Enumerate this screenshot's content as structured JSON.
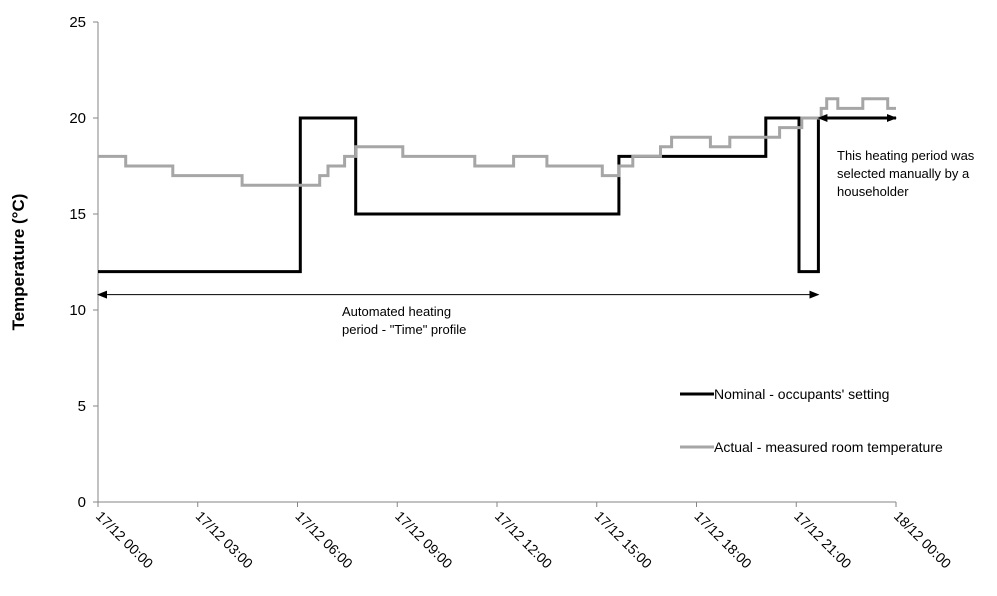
{
  "chart_data": {
    "type": "line",
    "title": "",
    "xlabel": "",
    "ylabel": "Temperature (°C)",
    "ylim": [
      0,
      25
    ],
    "yticks": [
      0,
      5,
      10,
      15,
      20,
      25
    ],
    "xlim": [
      "17/12 00:00",
      "18/12 00:00"
    ],
    "xtick_labels": [
      "17/12  00:00",
      "17/12  03:00",
      "17/12  06:00",
      "17/12  09:00",
      "17/12  12:00",
      "17/12  15:00",
      "17/12  18:00",
      "17/12  21:00",
      "18/12  00:00"
    ],
    "grid": false,
    "legend_position": "right",
    "series": [
      {
        "name": "Nominal - occupants' setting",
        "color": "#000000",
        "step": true,
        "points": [
          [
            "17/12 00:00",
            12
          ],
          [
            "17/12 06:05",
            20
          ],
          [
            "17/12 07:45",
            15
          ],
          [
            "17/12 15:40",
            18
          ],
          [
            "17/12 20:05",
            20
          ],
          [
            "17/12 21:05",
            12
          ],
          [
            "17/12 21:40",
            20
          ],
          [
            "18/12 00:00",
            20
          ]
        ]
      },
      {
        "name": "Actual - measured room temperature",
        "color": "#a6a6a6",
        "step": true,
        "points": [
          [
            "17/12 00:00",
            18
          ],
          [
            "17/12 00:50",
            17.5
          ],
          [
            "17/12 02:15",
            17
          ],
          [
            "17/12 04:20",
            16.5
          ],
          [
            "17/12 06:30",
            16.5
          ],
          [
            "17/12 06:40",
            17
          ],
          [
            "17/12 06:55",
            17.5
          ],
          [
            "17/12 07:25",
            18
          ],
          [
            "17/12 07:45",
            18.5
          ],
          [
            "17/12 09:10",
            18
          ],
          [
            "17/12 11:20",
            17.5
          ],
          [
            "17/12 12:30",
            18
          ],
          [
            "17/12 13:30",
            17.5
          ],
          [
            "17/12 15:10",
            17
          ],
          [
            "17/12 15:40",
            17.5
          ],
          [
            "17/12 16:05",
            18
          ],
          [
            "17/12 16:55",
            18.5
          ],
          [
            "17/12 17:15",
            19
          ],
          [
            "17/12 18:25",
            18.5
          ],
          [
            "17/12 19:00",
            19
          ],
          [
            "17/12 20:05",
            19
          ],
          [
            "17/12 20:30",
            19.5
          ],
          [
            "17/12 21:10",
            20
          ],
          [
            "17/12 21:45",
            20.5
          ],
          [
            "17/12 21:55",
            21
          ],
          [
            "17/12 22:15",
            20.5
          ],
          [
            "17/12 23:00",
            21
          ],
          [
            "17/12 23:45",
            20.5
          ],
          [
            "18/12 00:00",
            20.5
          ]
        ]
      }
    ],
    "annotations": [
      {
        "lines": [
          "Automated heating",
          "period - \"Time\" profile"
        ],
        "span": [
          "17/12 00:00",
          "17/12 21:40"
        ],
        "y": 10.8
      },
      {
        "lines": [
          "This heating period was",
          "selected manually by a",
          "householder"
        ],
        "span": [
          "17/12 21:40",
          "18/12 00:00"
        ],
        "y": 20
      }
    ]
  }
}
